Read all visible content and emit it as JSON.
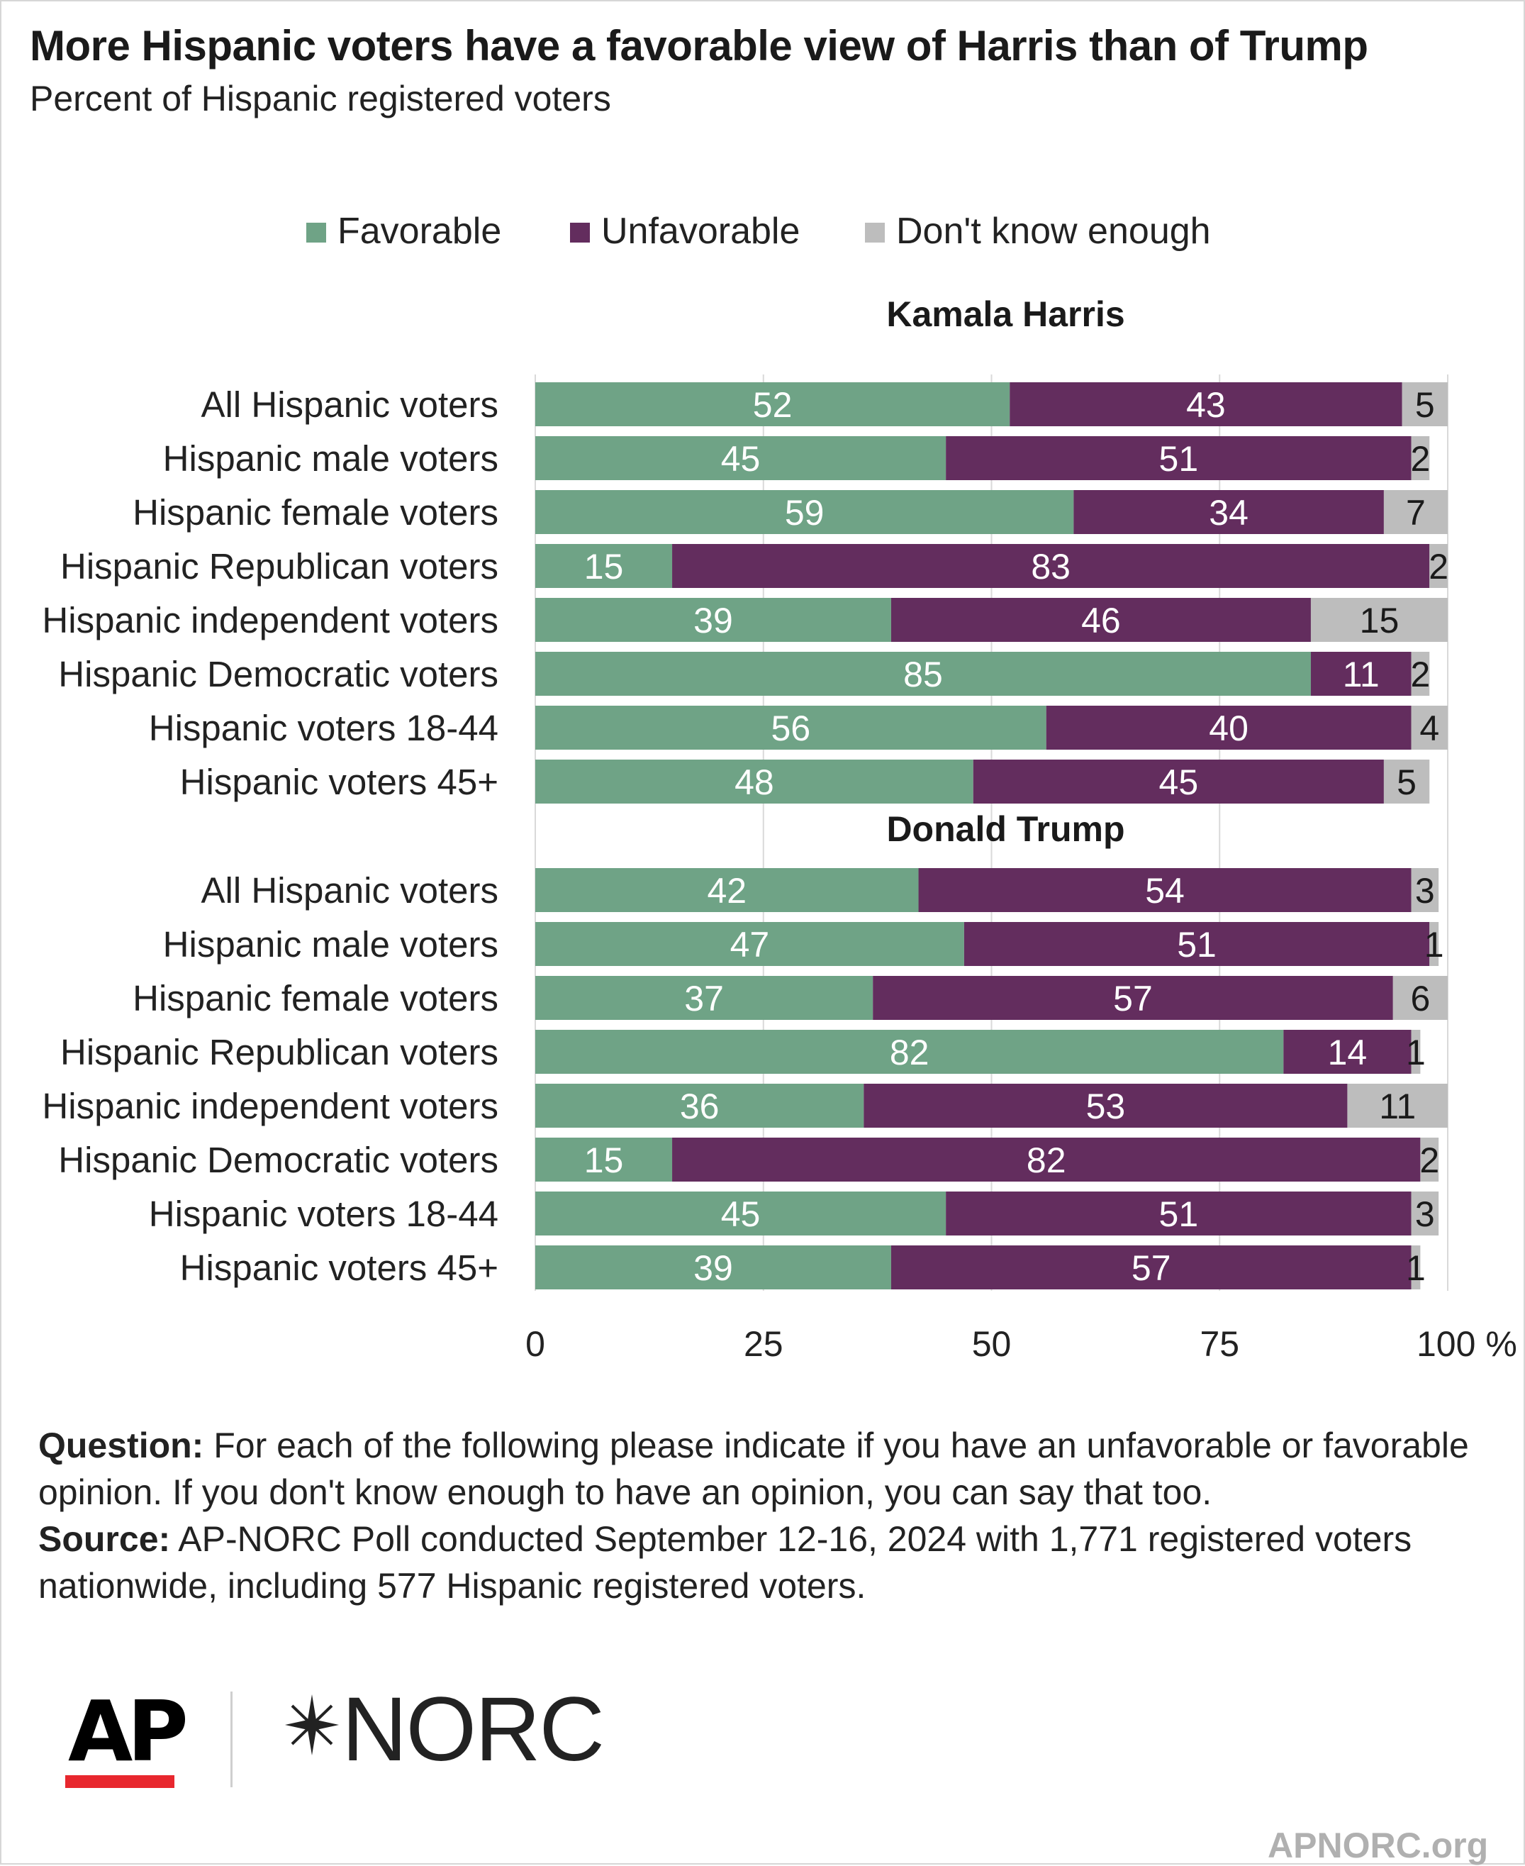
{
  "title": "More Hispanic voters have a favorable view of Harris than of Trump",
  "subtitle": "Percent of Hispanic registered voters",
  "footer": {
    "question_label": "Question:",
    "question_text": " For each of the following please indicate if you have an unfavorable or favorable opinion. If you don't know enough to have an opinion, you can say that too.",
    "source_label": "Source:",
    "source_text": " AP-NORC Poll conducted September 12-16, 2024 with 1,771 registered voters nationwide, including 577 Hispanic registered voters."
  },
  "branding": {
    "ap_logo": "AP",
    "norc_logo": "NORC",
    "website": "APNORC.org"
  },
  "colors": {
    "favorable": "#6fa386",
    "unfavorable": "#632d5e",
    "dont_know": "#bdbdbd",
    "grid": "#d9d9d9",
    "ap_red": "#e8272e"
  },
  "chart_data": {
    "type": "bar",
    "orientation": "horizontal",
    "stacked": true,
    "legend": {
      "position": "top",
      "entries": [
        "Favorable",
        "Unfavorable",
        "Don't know enough"
      ]
    },
    "xlim": [
      0,
      100
    ],
    "x_ticks": [
      "0",
      "25",
      "50",
      "75",
      "100 %"
    ],
    "grid": true,
    "panels": [
      {
        "title": "Kamala Harris",
        "categories": [
          "All Hispanic voters",
          "Hispanic male voters",
          "Hispanic female voters",
          "Hispanic Republican voters",
          "Hispanic independent voters",
          "Hispanic Democratic voters",
          "Hispanic voters 18-44",
          "Hispanic voters 45+"
        ],
        "series": [
          {
            "name": "Favorable",
            "values": [
              52,
              45,
              59,
              15,
              39,
              85,
              56,
              48
            ]
          },
          {
            "name": "Unfavorable",
            "values": [
              43,
              51,
              34,
              83,
              46,
              11,
              40,
              45
            ]
          },
          {
            "name": "Don't know enough",
            "values": [
              5,
              2,
              7,
              2,
              15,
              2,
              4,
              5
            ]
          }
        ]
      },
      {
        "title": "Donald Trump",
        "categories": [
          "All Hispanic voters",
          "Hispanic male voters",
          "Hispanic female voters",
          "Hispanic Republican voters",
          "Hispanic independent voters",
          "Hispanic Democratic voters",
          "Hispanic voters 18-44",
          "Hispanic voters 45+"
        ],
        "series": [
          {
            "name": "Favorable",
            "values": [
              42,
              47,
              37,
              82,
              36,
              15,
              45,
              39
            ]
          },
          {
            "name": "Unfavorable",
            "values": [
              54,
              51,
              57,
              14,
              53,
              82,
              51,
              57
            ]
          },
          {
            "name": "Don't know enough",
            "values": [
              3,
              1,
              6,
              1,
              11,
              2,
              3,
              1
            ]
          }
        ]
      }
    ]
  }
}
